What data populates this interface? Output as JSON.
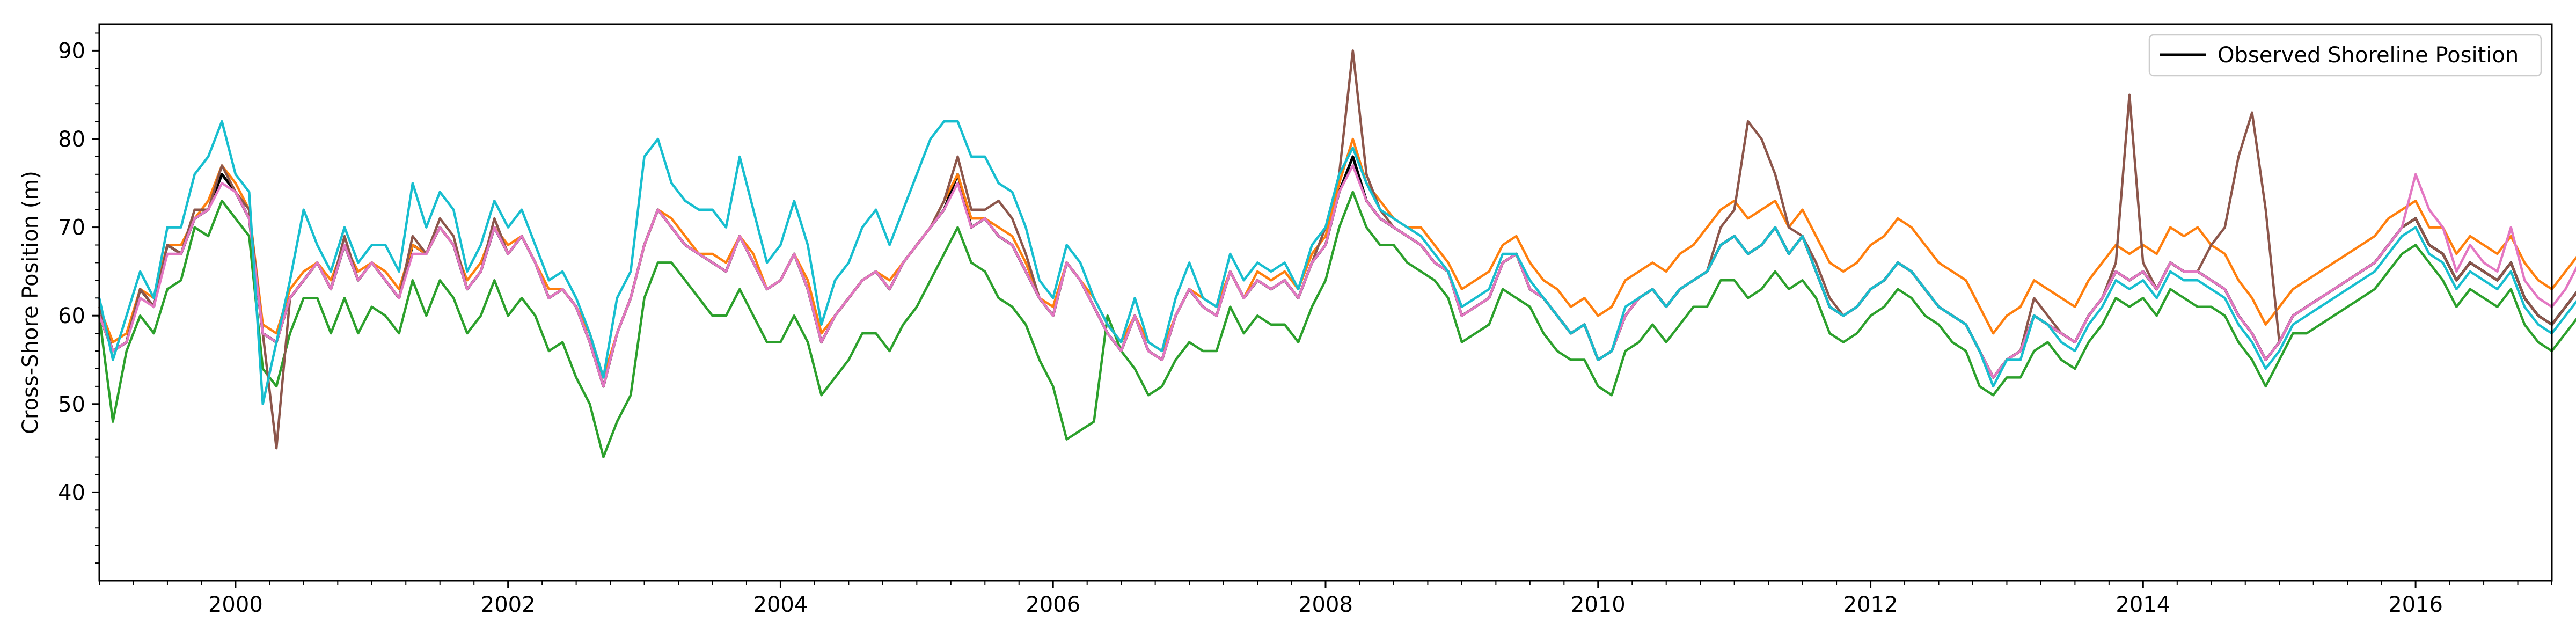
{
  "chart_data": {
    "type": "line",
    "ylabel": "Cross-Shore Position (m)",
    "xlim": [
      1999.0,
      2017.0
    ],
    "ylim": [
      30,
      93
    ],
    "x_ticks": [
      2000,
      2002,
      2004,
      2006,
      2008,
      2010,
      2012,
      2014,
      2016
    ],
    "y_ticks": [
      40,
      50,
      60,
      70,
      80,
      90
    ],
    "grid": false,
    "legend": {
      "position": "top-right",
      "entries": [
        "Observed Shoreline Position"
      ]
    },
    "observed_series": {
      "name": "Observed Shoreline Position",
      "color": "#000000",
      "x_start": 1999.0,
      "x_step": 0.1,
      "y": [
        60,
        56,
        57,
        63,
        61,
        68,
        67,
        71,
        72,
        76,
        74,
        71,
        58,
        57,
        62,
        64,
        66,
        63,
        68,
        64,
        66,
        64,
        62,
        68,
        67,
        70,
        68,
        63,
        65,
        70,
        67,
        69,
        66,
        62,
        63,
        61,
        57,
        52,
        58,
        62,
        68,
        72,
        70,
        68,
        67,
        66,
        65,
        69,
        66,
        63,
        64,
        67,
        63,
        57,
        60,
        62,
        64,
        65,
        63,
        66,
        68,
        70,
        72,
        76,
        70,
        71,
        69,
        68,
        65,
        62,
        60,
        66,
        64,
        61,
        58,
        56,
        60,
        56,
        55,
        60,
        63,
        61,
        60,
        65,
        62,
        64,
        63,
        64,
        62,
        66,
        68,
        74,
        78,
        73,
        71,
        70,
        69,
        68,
        66,
        65,
        60,
        61,
        62,
        66,
        67,
        63,
        62,
        60,
        58,
        59,
        55,
        56,
        60,
        62,
        63,
        61,
        63,
        64,
        65,
        68,
        69,
        67,
        68,
        70,
        67,
        69,
        65,
        61,
        60,
        61,
        63,
        64,
        66,
        65,
        63,
        61,
        60,
        59,
        56,
        53,
        55,
        56,
        60,
        59,
        58,
        57,
        60,
        62,
        65,
        64,
        65,
        63,
        66,
        65,
        65,
        64,
        63,
        60,
        58,
        55,
        57,
        60,
        61,
        62,
        63,
        64,
        65,
        66,
        68,
        70,
        71,
        68,
        67,
        64,
        66,
        65,
        64,
        66,
        62,
        60,
        59,
        61,
        63,
        64
      ]
    },
    "model_series": [
      {
        "color": "#2ca02c",
        "y": [
          60,
          48,
          56,
          60,
          58,
          63,
          64,
          70,
          69,
          73,
          71,
          69,
          54,
          52,
          58,
          62,
          62,
          58,
          62,
          58,
          61,
          60,
          58,
          64,
          60,
          64,
          62,
          58,
          60,
          64,
          60,
          62,
          60,
          56,
          57,
          53,
          50,
          44,
          48,
          51,
          62,
          66,
          66,
          64,
          62,
          60,
          60,
          63,
          60,
          57,
          57,
          60,
          57,
          51,
          53,
          55,
          58,
          58,
          56,
          59,
          61,
          64,
          67,
          70,
          66,
          65,
          62,
          61,
          59,
          55,
          52,
          46,
          47,
          48,
          60,
          56,
          54,
          51,
          52,
          55,
          57,
          56,
          56,
          61,
          58,
          60,
          59,
          59,
          57,
          61,
          64,
          70,
          74,
          70,
          68,
          68,
          66,
          65,
          64,
          62,
          57,
          58,
          59,
          63,
          62,
          61,
          58,
          56,
          55,
          55,
          52,
          51,
          56,
          57,
          59,
          57,
          59,
          61,
          61,
          64,
          64,
          62,
          63,
          65,
          63,
          64,
          62,
          58,
          57,
          58,
          60,
          61,
          63,
          62,
          60,
          59,
          57,
          56,
          52,
          51,
          53,
          53,
          56,
          57,
          55,
          54,
          57,
          59,
          62,
          61,
          62,
          60,
          63,
          62,
          61,
          61,
          60,
          57,
          55,
          52,
          55,
          58,
          58,
          59,
          60,
          61,
          62,
          63,
          65,
          67,
          68,
          66,
          64,
          61,
          63,
          62,
          61,
          63,
          59,
          57,
          56,
          58,
          60,
          61
        ]
      },
      {
        "color": "#ff7f0e",
        "y": [
          61,
          57,
          58,
          63,
          62,
          68,
          68,
          71,
          73,
          77,
          75,
          72,
          59,
          58,
          63,
          65,
          66,
          64,
          68,
          65,
          66,
          65,
          63,
          68,
          67,
          70,
          68,
          64,
          66,
          70,
          68,
          69,
          66,
          63,
          63,
          61,
          58,
          53,
          58,
          62,
          68,
          72,
          71,
          69,
          67,
          67,
          66,
          69,
          67,
          63,
          64,
          67,
          64,
          58,
          60,
          62,
          64,
          65,
          64,
          66,
          68,
          70,
          73,
          76,
          71,
          71,
          70,
          69,
          66,
          62,
          61,
          66,
          64,
          62,
          59,
          57,
          60,
          57,
          56,
          60,
          63,
          62,
          61,
          65,
          62,
          65,
          64,
          65,
          63,
          67,
          69,
          75,
          80,
          75,
          73,
          71,
          70,
          70,
          68,
          66,
          63,
          64,
          65,
          68,
          69,
          66,
          64,
          63,
          61,
          62,
          60,
          61,
          64,
          65,
          66,
          65,
          67,
          68,
          70,
          72,
          73,
          71,
          72,
          73,
          70,
          72,
          69,
          66,
          65,
          66,
          68,
          69,
          71,
          70,
          68,
          66,
          65,
          64,
          61,
          58,
          60,
          61,
          64,
          63,
          62,
          61,
          64,
          66,
          68,
          67,
          68,
          67,
          70,
          69,
          70,
          68,
          67,
          64,
          62,
          59,
          61,
          63,
          64,
          65,
          66,
          67,
          68,
          69,
          71,
          72,
          73,
          70,
          70,
          67,
          69,
          68,
          67,
          69,
          66,
          64,
          63,
          65,
          67,
          68
        ]
      },
      {
        "color": "#8c564b",
        "y": [
          61,
          56,
          57,
          63,
          61,
          68,
          67,
          72,
          72,
          77,
          74,
          72,
          58,
          45,
          62,
          64,
          66,
          63,
          69,
          64,
          66,
          64,
          62,
          69,
          67,
          71,
          69,
          63,
          65,
          71,
          67,
          69,
          66,
          62,
          63,
          61,
          57,
          52,
          58,
          62,
          68,
          72,
          70,
          68,
          67,
          66,
          65,
          69,
          66,
          63,
          64,
          67,
          63,
          57,
          60,
          62,
          64,
          65,
          63,
          66,
          68,
          70,
          73,
          78,
          72,
          72,
          73,
          71,
          67,
          62,
          60,
          66,
          64,
          61,
          58,
          56,
          60,
          56,
          55,
          60,
          63,
          61,
          60,
          65,
          62,
          64,
          63,
          64,
          62,
          66,
          70,
          76,
          90,
          76,
          72,
          70,
          69,
          68,
          66,
          65,
          60,
          61,
          62,
          66,
          67,
          63,
          62,
          60,
          58,
          59,
          55,
          56,
          60,
          62,
          63,
          61,
          63,
          64,
          65,
          70,
          72,
          82,
          80,
          76,
          70,
          69,
          66,
          62,
          60,
          61,
          63,
          64,
          66,
          65,
          63,
          61,
          60,
          59,
          56,
          53,
          55,
          56,
          62,
          60,
          58,
          57,
          60,
          62,
          66,
          85,
          66,
          63,
          66,
          65,
          65,
          68,
          70,
          78,
          83,
          72,
          57,
          60,
          61,
          62,
          63,
          64,
          65,
          66,
          68,
          70,
          71,
          68,
          67,
          64,
          66,
          65,
          64,
          66,
          62,
          60,
          59,
          61,
          63,
          64
        ]
      },
      {
        "color": "#e377c2",
        "y": [
          60,
          56,
          57,
          62,
          61,
          67,
          67,
          71,
          72,
          75,
          74,
          71,
          58,
          57,
          62,
          64,
          66,
          63,
          68,
          64,
          66,
          64,
          62,
          67,
          67,
          70,
          68,
          63,
          65,
          70,
          67,
          69,
          66,
          62,
          63,
          61,
          57,
          52,
          58,
          62,
          68,
          72,
          70,
          68,
          67,
          66,
          65,
          69,
          66,
          63,
          64,
          67,
          63,
          57,
          60,
          62,
          64,
          65,
          63,
          66,
          68,
          70,
          72,
          75,
          70,
          71,
          69,
          68,
          65,
          62,
          60,
          66,
          64,
          61,
          58,
          56,
          60,
          56,
          55,
          60,
          63,
          61,
          60,
          65,
          62,
          64,
          63,
          64,
          62,
          66,
          68,
          74,
          77,
          73,
          71,
          70,
          69,
          68,
          66,
          65,
          60,
          61,
          62,
          66,
          67,
          63,
          62,
          60,
          58,
          59,
          55,
          56,
          60,
          62,
          63,
          61,
          63,
          64,
          65,
          68,
          69,
          67,
          68,
          70,
          67,
          69,
          65,
          61,
          60,
          61,
          63,
          64,
          66,
          65,
          63,
          61,
          60,
          59,
          56,
          53,
          55,
          56,
          60,
          59,
          58,
          57,
          60,
          62,
          65,
          64,
          65,
          63,
          66,
          65,
          65,
          64,
          63,
          60,
          58,
          55,
          57,
          60,
          61,
          62,
          63,
          64,
          65,
          66,
          68,
          70,
          76,
          72,
          70,
          65,
          68,
          66,
          65,
          70,
          64,
          62,
          61,
          63,
          66,
          68
        ]
      },
      {
        "color": "#17becf",
        "y": [
          62,
          55,
          60,
          65,
          62,
          70,
          70,
          76,
          78,
          82,
          76,
          74,
          50,
          57,
          64,
          72,
          68,
          65,
          70,
          66,
          68,
          68,
          65,
          75,
          70,
          74,
          72,
          65,
          68,
          73,
          70,
          72,
          68,
          64,
          65,
          62,
          58,
          53,
          62,
          65,
          78,
          80,
          75,
          73,
          72,
          72,
          70,
          78,
          72,
          66,
          68,
          73,
          68,
          59,
          64,
          66,
          70,
          72,
          68,
          72,
          76,
          80,
          82,
          82,
          78,
          78,
          75,
          74,
          70,
          64,
          62,
          68,
          66,
          62,
          59,
          57,
          62,
          57,
          56,
          62,
          66,
          62,
          61,
          67,
          64,
          66,
          65,
          66,
          63,
          68,
          70,
          76,
          79,
          75,
          72,
          71,
          70,
          69,
          67,
          65,
          61,
          62,
          63,
          67,
          67,
          64,
          62,
          60,
          58,
          59,
          55,
          56,
          61,
          62,
          63,
          61,
          63,
          64,
          65,
          68,
          69,
          67,
          68,
          70,
          67,
          69,
          65,
          61,
          60,
          61,
          63,
          64,
          66,
          65,
          63,
          61,
          60,
          59,
          56,
          52,
          55,
          55,
          60,
          59,
          57,
          56,
          59,
          61,
          64,
          63,
          64,
          62,
          65,
          64,
          64,
          63,
          62,
          59,
          57,
          54,
          56,
          59,
          60,
          61,
          62,
          63,
          64,
          65,
          67,
          69,
          70,
          67,
          66,
          63,
          65,
          64,
          63,
          65,
          61,
          59,
          58,
          60,
          62,
          63
        ]
      }
    ]
  }
}
